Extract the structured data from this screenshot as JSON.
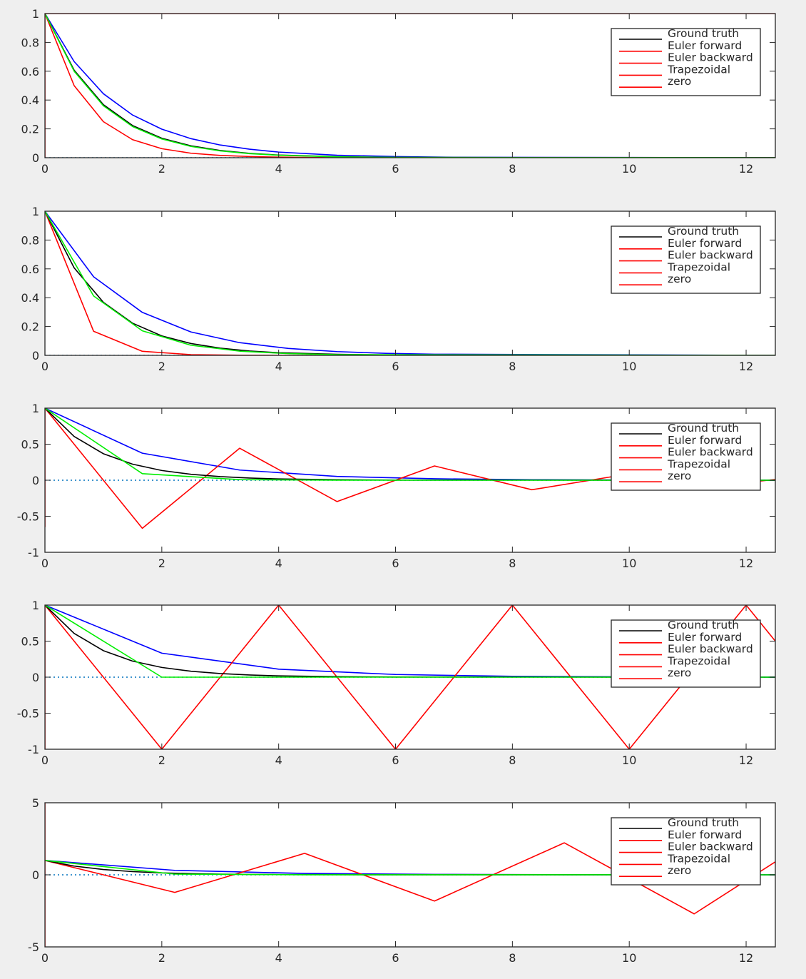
{
  "figure": {
    "legend_labels": [
      "Ground truth",
      "Euler forward",
      "Euler backward",
      "Trapezoidal",
      "zero"
    ]
  },
  "colors": {
    "ground_truth": "#000000",
    "euler_forward": "#ff0000",
    "euler_backward": "#0000ff",
    "trapezoidal": "#00ee00",
    "zero": "#ff0000",
    "zero_line": "#0072bd",
    "legend_swatch": "#ff0000",
    "legend_swatch_first": "#000000"
  },
  "chart_data": [
    {
      "type": "line",
      "xlim": [
        0,
        12.5
      ],
      "ylim": [
        0,
        1
      ],
      "xticks": [
        0,
        2,
        4,
        6,
        8,
        10,
        12
      ],
      "yticks": [
        0,
        0.2,
        0.4,
        0.6,
        0.8,
        1
      ],
      "ytick_labels": [
        "0",
        "0.2",
        "0.4",
        "0.6",
        "0.8",
        "1"
      ],
      "legend_location": "top-right",
      "series": [
        {
          "name": "Euler backward",
          "color_key": "euler_backward",
          "x": [
            0,
            0.5,
            1,
            1.5,
            2,
            2.5,
            3,
            3.5,
            4,
            5,
            6,
            7,
            12.5
          ],
          "y": [
            1,
            0.667,
            0.444,
            0.296,
            0.198,
            0.132,
            0.088,
            0.059,
            0.039,
            0.017,
            0.008,
            0.003,
            0
          ]
        },
        {
          "name": "Euler forward",
          "color_key": "euler_forward",
          "x": [
            0,
            0.5,
            1,
            1.5,
            2,
            2.5,
            3,
            3.5,
            4,
            5,
            12.5
          ],
          "y": [
            1,
            0.5,
            0.25,
            0.125,
            0.0625,
            0.031,
            0.016,
            0.008,
            0.004,
            0,
            0
          ]
        },
        {
          "name": "Ground truth",
          "color_key": "ground_truth",
          "x": [
            0,
            0.5,
            1,
            1.5,
            2,
            2.5,
            3,
            3.5,
            4,
            5,
            6,
            12.5
          ],
          "y": [
            1,
            0.607,
            0.368,
            0.223,
            0.135,
            0.082,
            0.05,
            0.03,
            0.018,
            0.007,
            0.002,
            0
          ]
        },
        {
          "name": "Trapezoidal",
          "color_key": "trapezoidal",
          "x": [
            0,
            0.5,
            1,
            1.5,
            2,
            2.5,
            3,
            3.5,
            4,
            5,
            6,
            12.5
          ],
          "y": [
            1,
            0.6,
            0.36,
            0.216,
            0.13,
            0.078,
            0.047,
            0.028,
            0.017,
            0.006,
            0.002,
            0
          ]
        },
        {
          "name": "zero",
          "color_key": "zero",
          "x": [
            0,
            0,
            12.5
          ],
          "y": [
            0,
            1,
            1
          ],
          "vertical_only": true
        }
      ]
    },
    {
      "type": "line",
      "xlim": [
        0,
        12.5
      ],
      "ylim": [
        0,
        1
      ],
      "xticks": [
        0,
        2,
        4,
        6,
        8,
        10,
        12
      ],
      "yticks": [
        0,
        0.2,
        0.4,
        0.6,
        0.8,
        1
      ],
      "ytick_labels": [
        "0",
        "0.2",
        "0.4",
        "0.6",
        "0.8",
        "1"
      ],
      "legend_location": "top-right",
      "series": [
        {
          "name": "Euler backward",
          "color_key": "euler_backward",
          "x": [
            0,
            0.833,
            1.667,
            2.5,
            3.333,
            4.167,
            5,
            5.833,
            6.667,
            12.5
          ],
          "y": [
            1,
            0.545,
            0.298,
            0.162,
            0.088,
            0.048,
            0.026,
            0.014,
            0.008,
            0
          ]
        },
        {
          "name": "Euler forward",
          "color_key": "euler_forward",
          "x": [
            0,
            0.833,
            1.667,
            2.5,
            3.333,
            4.167,
            12.5
          ],
          "y": [
            1,
            0.167,
            0.028,
            0.005,
            0.001,
            0,
            0
          ]
        },
        {
          "name": "Ground truth",
          "color_key": "ground_truth",
          "x": [
            0,
            0.5,
            1,
            1.5,
            2,
            2.5,
            3,
            3.5,
            4,
            5,
            6,
            12.5
          ],
          "y": [
            1,
            0.607,
            0.368,
            0.223,
            0.135,
            0.082,
            0.05,
            0.03,
            0.018,
            0.007,
            0.002,
            0
          ]
        },
        {
          "name": "Trapezoidal",
          "color_key": "trapezoidal",
          "x": [
            0,
            0.833,
            1.667,
            2.5,
            3.333,
            4.167,
            5,
            12.5
          ],
          "y": [
            1,
            0.412,
            0.17,
            0.07,
            0.029,
            0.012,
            0.005,
            0
          ]
        }
      ]
    },
    {
      "type": "line",
      "xlim": [
        0,
        12.5
      ],
      "ylim": [
        -1,
        1
      ],
      "xticks": [
        0,
        2,
        4,
        6,
        8,
        10,
        12
      ],
      "yticks": [
        -1,
        -0.5,
        0,
        0.5,
        1
      ],
      "ytick_labels": [
        "-1",
        "-0.5",
        "0",
        "0.5",
        "1"
      ],
      "legend_location": "top-right",
      "series": [
        {
          "name": "Euler backward",
          "color_key": "euler_backward",
          "x": [
            0,
            1.667,
            3.333,
            5,
            6.667,
            8.333,
            10,
            12.5
          ],
          "y": [
            1,
            0.375,
            0.141,
            0.053,
            0.02,
            0.007,
            0.003,
            0
          ]
        },
        {
          "name": "Euler forward",
          "color_key": "euler_forward",
          "x": [
            0,
            1.667,
            3.333,
            5,
            6.667,
            8.333,
            10,
            11.667,
            12.5
          ],
          "y": [
            1,
            -0.667,
            0.444,
            -0.296,
            0.198,
            -0.132,
            0.088,
            -0.059,
            0.01
          ]
        },
        {
          "name": "Ground truth",
          "color_key": "ground_truth",
          "x": [
            0,
            0.5,
            1,
            1.5,
            2,
            2.5,
            3,
            3.5,
            4,
            5,
            6,
            12.5
          ],
          "y": [
            1,
            0.607,
            0.368,
            0.223,
            0.135,
            0.082,
            0.05,
            0.03,
            0.018,
            0.007,
            0.002,
            0
          ]
        },
        {
          "name": "Trapezoidal",
          "color_key": "trapezoidal",
          "x": [
            0,
            1.667,
            3.333,
            5,
            6.667,
            12.5
          ],
          "y": [
            1,
            0.091,
            0.008,
            0.001,
            0,
            0
          ]
        },
        {
          "name": "zero",
          "color_key": "zero",
          "x": [
            0,
            0
          ],
          "y": [
            1,
            -0.65
          ],
          "vertical_only": true
        }
      ]
    },
    {
      "type": "line",
      "xlim": [
        0,
        12.5
      ],
      "ylim": [
        -1,
        1
      ],
      "xticks": [
        0,
        2,
        4,
        6,
        8,
        10,
        12
      ],
      "yticks": [
        -1,
        -0.5,
        0,
        0.5,
        1
      ],
      "ytick_labels": [
        "-1",
        "-0.5",
        "0",
        "0.5",
        "1"
      ],
      "legend_location": "top-right",
      "series": [
        {
          "name": "Euler backward",
          "color_key": "euler_backward",
          "x": [
            0,
            2,
            4,
            6,
            8,
            10,
            12.5
          ],
          "y": [
            1,
            0.333,
            0.111,
            0.037,
            0.012,
            0.004,
            0
          ]
        },
        {
          "name": "Euler forward",
          "color_key": "euler_forward",
          "x": [
            0,
            2,
            4,
            6,
            8,
            10,
            12,
            12.5
          ],
          "y": [
            1,
            -1,
            1,
            -1,
            1,
            -1,
            1,
            0.5
          ]
        },
        {
          "name": "Ground truth",
          "color_key": "ground_truth",
          "x": [
            0,
            0.5,
            1,
            1.5,
            2,
            2.5,
            3,
            3.5,
            4,
            5,
            6,
            12.5
          ],
          "y": [
            1,
            0.607,
            0.368,
            0.223,
            0.135,
            0.082,
            0.05,
            0.03,
            0.018,
            0.007,
            0.002,
            0
          ]
        },
        {
          "name": "Trapezoidal",
          "color_key": "trapezoidal",
          "x": [
            0,
            2,
            4,
            12.5
          ],
          "y": [
            1,
            0,
            0,
            0
          ]
        },
        {
          "name": "zero",
          "color_key": "zero",
          "x": [
            0,
            0
          ],
          "y": [
            1,
            -1
          ],
          "vertical_only": true
        }
      ]
    },
    {
      "type": "line",
      "xlim": [
        0,
        12.5
      ],
      "ylim": [
        -5,
        5
      ],
      "xticks": [
        0,
        2,
        4,
        6,
        8,
        10,
        12
      ],
      "yticks": [
        -5,
        0,
        5
      ],
      "ytick_labels": [
        "-5",
        "0",
        "5"
      ],
      "legend_location": "top-right",
      "series": [
        {
          "name": "Euler backward",
          "color_key": "euler_backward",
          "x": [
            0,
            2.222,
            4.444,
            6.667,
            8.889,
            11.111,
            12.5
          ],
          "y": [
            1,
            0.31,
            0.096,
            0.03,
            0.009,
            0.003,
            0
          ]
        },
        {
          "name": "Euler forward",
          "color_key": "euler_forward",
          "x": [
            0,
            2.222,
            4.444,
            6.667,
            8.889,
            11.111,
            12.5
          ],
          "y": [
            1,
            -1.22,
            1.49,
            -1.82,
            2.22,
            -2.71,
            0.9
          ]
        },
        {
          "name": "Ground truth",
          "color_key": "ground_truth",
          "x": [
            0,
            0.5,
            1,
            1.5,
            2,
            2.5,
            3,
            3.5,
            4,
            5,
            6,
            12.5
          ],
          "y": [
            1,
            0.607,
            0.368,
            0.223,
            0.135,
            0.082,
            0.05,
            0.03,
            0.018,
            0.007,
            0.002,
            0
          ]
        },
        {
          "name": "Trapezoidal",
          "color_key": "trapezoidal",
          "x": [
            0,
            2.222,
            4.444,
            12.5
          ],
          "y": [
            1,
            0.05,
            0.003,
            0
          ]
        },
        {
          "name": "zero",
          "color_key": "zero",
          "x": [
            0,
            0
          ],
          "y": [
            5,
            -5
          ],
          "vertical_only": true
        }
      ]
    }
  ]
}
